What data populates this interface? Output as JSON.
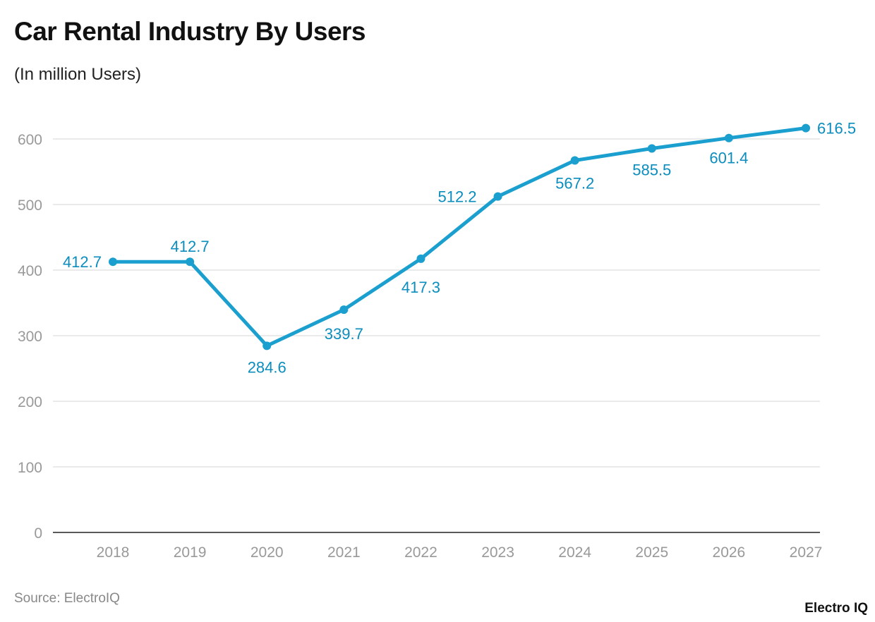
{
  "title": "Car Rental Industry By Users",
  "subtitle": "(In million Users)",
  "source": "Source: ElectroIQ",
  "logo": "Electro IQ",
  "chart_data": {
    "type": "line",
    "title": "Car Rental Industry By Users",
    "subtitle": "(In million Users)",
    "xlabel": "",
    "ylabel": "",
    "categories": [
      "2018",
      "2019",
      "2020",
      "2021",
      "2022",
      "2023",
      "2024",
      "2025",
      "2026",
      "2027"
    ],
    "values": [
      412.7,
      412.7,
      284.6,
      339.7,
      417.3,
      512.2,
      567.2,
      585.5,
      601.4,
      616.5
    ],
    "ylim": [
      0,
      600
    ],
    "yticks": [
      0,
      100,
      200,
      300,
      400,
      500,
      600
    ],
    "grid": true,
    "legend": "none",
    "color": "#1a9fcf",
    "label_color": "#0b8dbd"
  }
}
